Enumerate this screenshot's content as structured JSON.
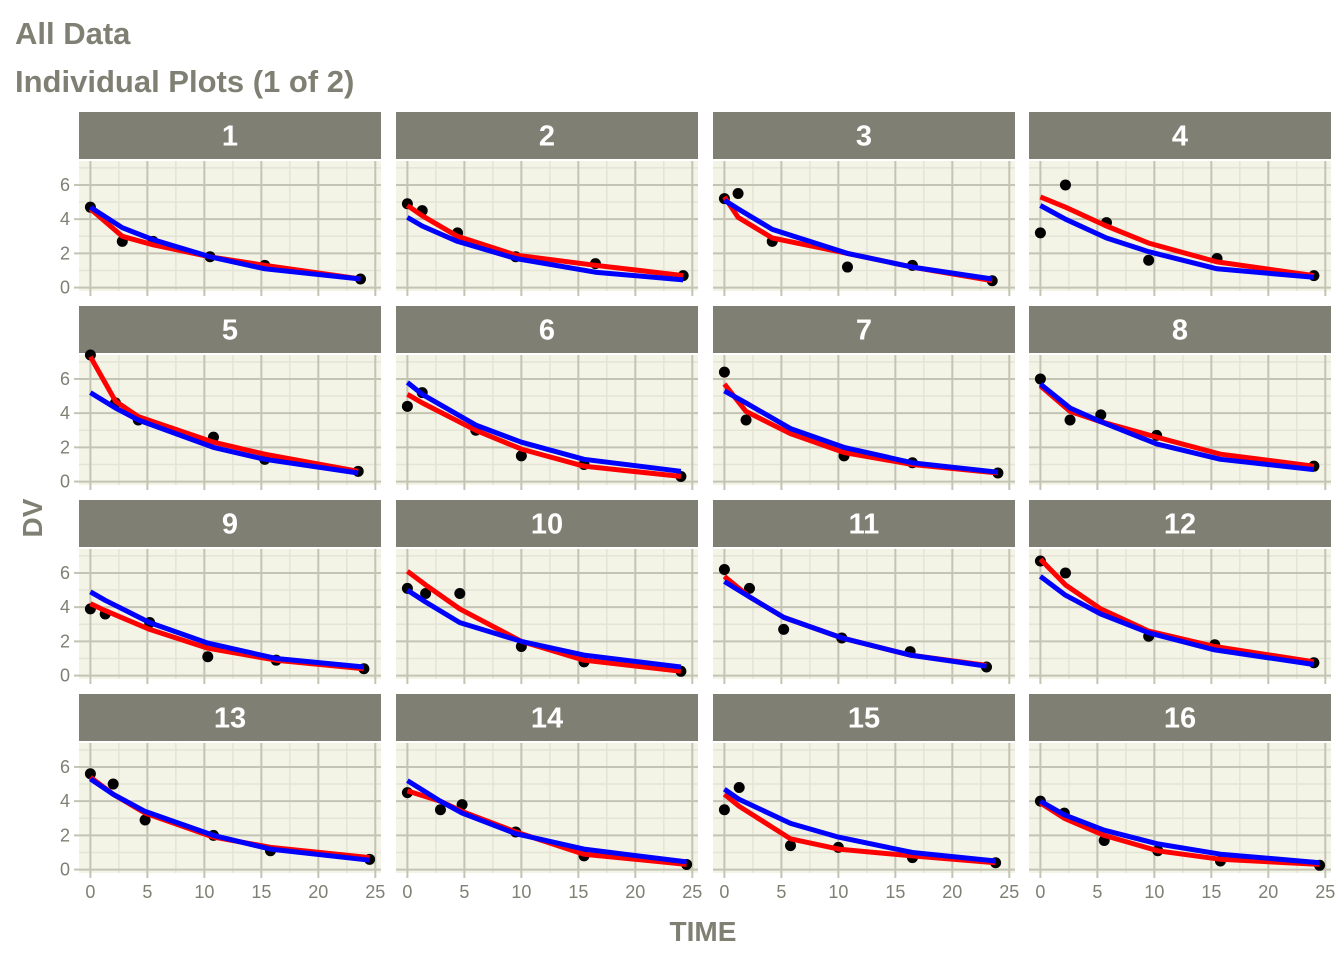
{
  "colors": {
    "text": "#7f7f73",
    "strip": "#7f7f73",
    "strip_text": "#ffffff",
    "panel_bg": "#f3f3e6",
    "grid_major": "#c4c4b4",
    "grid_minor": "#e4e4d6",
    "observed": "#000000",
    "ipred": "#ff0000",
    "pred": "#0000ff"
  },
  "header": {
    "title": "All Data",
    "subtitle": "Individual Plots (1 of 2)"
  },
  "chart_data": {
    "type": "line",
    "facet_layout": "4x4",
    "xlabel": "TIME",
    "ylabel": "DV",
    "xlim": [
      -1,
      25.5
    ],
    "ylim": [
      -0.2,
      7.4
    ],
    "x_ticks": [
      0,
      5,
      10,
      15,
      20,
      25
    ],
    "y_ticks": [
      0,
      2,
      4,
      6
    ],
    "grid": true,
    "legend": "none",
    "series_legend": [
      {
        "color": "#000000",
        "style": "points"
      },
      {
        "color": "#ff0000",
        "style": "line"
      },
      {
        "color": "#0000ff",
        "style": "line"
      }
    ],
    "panels": [
      {
        "label": "1",
        "obs_x": [
          0,
          2.8,
          5.5,
          10.5,
          15.3,
          23.7
        ],
        "obs_y": [
          4.7,
          2.7,
          2.7,
          1.8,
          1.3,
          0.5
        ],
        "red_x": [
          0,
          2.8,
          5.5,
          10.5,
          15.3,
          23.7
        ],
        "red_y": [
          4.6,
          3.0,
          2.5,
          1.8,
          1.3,
          0.5
        ],
        "blue_x": [
          0,
          2.8,
          5.5,
          10.5,
          15.3,
          23.7
        ],
        "blue_y": [
          4.7,
          3.5,
          2.8,
          1.8,
          1.1,
          0.5
        ]
      },
      {
        "label": "2",
        "obs_x": [
          0,
          1.3,
          4.4,
          9.5,
          16.5,
          24.2
        ],
        "obs_y": [
          4.9,
          4.5,
          3.2,
          1.8,
          1.4,
          0.7
        ],
        "red_x": [
          0,
          1.3,
          4.4,
          9.5,
          16.5,
          24.2
        ],
        "red_y": [
          4.8,
          4.2,
          3.0,
          1.9,
          1.3,
          0.7
        ],
        "blue_x": [
          0,
          1.3,
          4.4,
          9.5,
          16.5,
          24.2
        ],
        "blue_y": [
          4.1,
          3.6,
          2.7,
          1.7,
          0.9,
          0.45
        ]
      },
      {
        "label": "3",
        "obs_x": [
          0,
          1.2,
          4.2,
          10.8,
          16.5,
          23.5
        ],
        "obs_y": [
          5.2,
          5.5,
          2.7,
          1.2,
          1.3,
          0.4
        ],
        "red_x": [
          0,
          1.2,
          4.2,
          10.8,
          16.5,
          23.5
        ],
        "red_y": [
          5.3,
          4.1,
          2.9,
          2.0,
          1.2,
          0.4
        ],
        "blue_x": [
          0,
          1.2,
          4.2,
          10.8,
          16.5,
          23.5
        ],
        "blue_y": [
          5.1,
          4.6,
          3.4,
          2.0,
          1.2,
          0.5
        ]
      },
      {
        "label": "4",
        "obs_x": [
          0,
          2.2,
          5.8,
          9.5,
          15.5,
          24
        ],
        "obs_y": [
          3.2,
          6.0,
          3.8,
          1.6,
          1.7,
          0.7
        ],
        "red_x": [
          0,
          2.2,
          5.8,
          9.5,
          15.5,
          24
        ],
        "red_y": [
          5.3,
          4.7,
          3.6,
          2.6,
          1.5,
          0.7
        ],
        "blue_x": [
          0,
          2.2,
          5.8,
          9.5,
          15.5,
          24
        ],
        "blue_y": [
          4.8,
          4.0,
          2.9,
          2.1,
          1.1,
          0.6
        ]
      },
      {
        "label": "5",
        "obs_x": [
          0,
          2.2,
          4.2,
          10.8,
          15.3,
          23.5
        ],
        "obs_y": [
          7.4,
          4.6,
          3.6,
          2.6,
          1.3,
          0.6
        ],
        "red_x": [
          0,
          2.2,
          4.2,
          10.8,
          15.3,
          23.5
        ],
        "red_y": [
          7.3,
          4.7,
          3.8,
          2.3,
          1.6,
          0.6
        ],
        "blue_x": [
          0,
          2.2,
          4.2,
          10.8,
          15.3,
          23.5
        ],
        "blue_y": [
          5.2,
          4.3,
          3.6,
          2.0,
          1.3,
          0.5
        ]
      },
      {
        "label": "6",
        "obs_x": [
          0,
          1.3,
          6,
          10,
          15.5,
          24
        ],
        "obs_y": [
          4.4,
          5.2,
          3.0,
          1.5,
          1.0,
          0.3
        ],
        "red_x": [
          0,
          1.3,
          6,
          10,
          15.5,
          24
        ],
        "red_y": [
          5.1,
          4.6,
          3.0,
          1.9,
          0.9,
          0.3
        ],
        "blue_x": [
          0,
          1.3,
          6,
          10,
          15.5,
          24
        ],
        "blue_y": [
          5.8,
          5.1,
          3.3,
          2.3,
          1.3,
          0.6
        ]
      },
      {
        "label": "7",
        "obs_x": [
          0,
          1.9,
          10.5,
          16.5,
          24
        ],
        "obs_y": [
          6.4,
          3.6,
          1.5,
          1.1,
          0.5
        ],
        "red_x": [
          0,
          1.9,
          5.8,
          10.5,
          16.5,
          24
        ],
        "red_y": [
          5.7,
          4.1,
          2.8,
          1.7,
          1.0,
          0.5
        ],
        "blue_x": [
          0,
          1.9,
          5.8,
          10.5,
          16.5,
          24
        ],
        "blue_y": [
          5.3,
          4.6,
          3.1,
          2.0,
          1.1,
          0.55
        ]
      },
      {
        "label": "8",
        "obs_x": [
          0,
          2.6,
          5.3,
          10.2,
          24
        ],
        "obs_y": [
          6.0,
          3.6,
          3.9,
          2.7,
          0.9
        ],
        "red_x": [
          0,
          2.6,
          5.3,
          10.2,
          15.8,
          24
        ],
        "red_y": [
          5.6,
          4.1,
          3.5,
          2.6,
          1.6,
          0.9
        ],
        "blue_x": [
          0,
          2.6,
          5.3,
          10.2,
          15.8,
          24
        ],
        "blue_y": [
          5.7,
          4.3,
          3.5,
          2.2,
          1.3,
          0.7
        ]
      },
      {
        "label": "9",
        "obs_x": [
          0,
          1.3,
          5.2,
          10.3,
          16.3,
          24
        ],
        "obs_y": [
          3.9,
          3.6,
          3.1,
          1.1,
          0.9,
          0.4
        ],
        "red_x": [
          0,
          1.3,
          5.2,
          10.3,
          16.3,
          24
        ],
        "red_y": [
          4.2,
          3.8,
          2.7,
          1.6,
          0.9,
          0.4
        ],
        "blue_x": [
          0,
          1.3,
          5.2,
          10.3,
          16.3,
          24
        ],
        "blue_y": [
          4.9,
          4.4,
          3.1,
          1.9,
          1.0,
          0.5
        ]
      },
      {
        "label": "10",
        "obs_x": [
          0,
          1.6,
          4.6,
          10,
          15.5,
          24
        ],
        "obs_y": [
          5.1,
          4.8,
          4.8,
          1.7,
          0.8,
          0.25
        ],
        "red_x": [
          0,
          1.6,
          4.6,
          10,
          15.5,
          24
        ],
        "red_y": [
          6.1,
          5.3,
          3.9,
          2.0,
          0.9,
          0.25
        ],
        "blue_x": [
          0,
          1.6,
          4.6,
          10,
          15.5,
          24
        ],
        "blue_y": [
          5.0,
          4.3,
          3.1,
          2.0,
          1.2,
          0.5
        ]
      },
      {
        "label": "11",
        "obs_x": [
          0,
          2.2,
          5.2,
          10.3,
          16.3,
          23
        ],
        "obs_y": [
          6.2,
          5.1,
          2.7,
          2.2,
          1.4,
          0.5
        ],
        "red_x": [
          0,
          2.2,
          5.2,
          10.3,
          16.3,
          23
        ],
        "red_y": [
          5.8,
          4.6,
          3.4,
          2.2,
          1.2,
          0.6
        ],
        "blue_x": [
          0,
          2.2,
          5.2,
          10.3,
          16.3,
          23
        ],
        "blue_y": [
          5.5,
          4.6,
          3.4,
          2.2,
          1.2,
          0.55
        ]
      },
      {
        "label": "12",
        "obs_x": [
          0,
          2.2,
          9.5,
          15.3,
          24
        ],
        "obs_y": [
          6.7,
          6.0,
          2.3,
          1.8,
          0.75
        ],
        "red_x": [
          0,
          2.2,
          5.3,
          9.5,
          15.3,
          24
        ],
        "red_y": [
          6.8,
          5.3,
          3.9,
          2.6,
          1.7,
          0.8
        ],
        "blue_x": [
          0,
          2.2,
          5.3,
          9.5,
          15.3,
          24
        ],
        "blue_y": [
          5.8,
          4.7,
          3.6,
          2.5,
          1.5,
          0.65
        ]
      },
      {
        "label": "13",
        "obs_x": [
          0,
          2,
          4.8,
          10.8,
          15.8,
          24.5
        ],
        "obs_y": [
          5.6,
          5.0,
          2.9,
          2.0,
          1.1,
          0.6
        ],
        "red_x": [
          0,
          2,
          4.8,
          10.8,
          15.8,
          24.5
        ],
        "red_y": [
          5.4,
          4.4,
          3.3,
          1.9,
          1.3,
          0.7
        ],
        "blue_x": [
          0,
          2,
          4.8,
          10.8,
          15.8,
          24.5
        ],
        "blue_y": [
          5.3,
          4.4,
          3.4,
          2.0,
          1.2,
          0.55
        ]
      },
      {
        "label": "14",
        "obs_x": [
          0,
          2.9,
          4.8,
          9.5,
          15.5,
          24.5
        ],
        "obs_y": [
          4.5,
          3.5,
          3.8,
          2.2,
          0.8,
          0.3
        ],
        "red_x": [
          0,
          2.9,
          4.8,
          9.5,
          15.5,
          24.5
        ],
        "red_y": [
          4.6,
          4.0,
          3.4,
          2.2,
          0.9,
          0.3
        ],
        "blue_x": [
          0,
          2.9,
          4.8,
          9.5,
          15.5,
          24.5
        ],
        "blue_y": [
          5.2,
          4.0,
          3.3,
          2.1,
          1.2,
          0.45
        ]
      },
      {
        "label": "15",
        "obs_x": [
          0,
          1.3,
          5.8,
          10,
          16.5,
          23.8
        ],
        "obs_y": [
          3.5,
          4.8,
          1.4,
          1.3,
          0.7,
          0.4
        ],
        "red_x": [
          0,
          1.3,
          5.8,
          10,
          16.5,
          23.8
        ],
        "red_y": [
          4.4,
          3.7,
          1.8,
          1.2,
          0.8,
          0.4
        ],
        "blue_x": [
          0,
          1.3,
          5.8,
          10,
          16.5,
          23.8
        ],
        "blue_y": [
          4.7,
          4.1,
          2.7,
          1.9,
          1.0,
          0.5
        ]
      },
      {
        "label": "16",
        "obs_x": [
          0,
          2.1,
          5.6,
          10.3,
          15.8,
          24.5
        ],
        "obs_y": [
          4.0,
          3.3,
          1.7,
          1.1,
          0.5,
          0.25
        ],
        "red_x": [
          0,
          2.1,
          5.6,
          10.3,
          15.8,
          24.5
        ],
        "red_y": [
          3.9,
          3.0,
          2.0,
          1.1,
          0.6,
          0.3
        ],
        "blue_x": [
          0,
          2.1,
          5.6,
          10.3,
          15.8,
          24.5
        ],
        "blue_y": [
          4.0,
          3.2,
          2.3,
          1.5,
          0.9,
          0.4
        ]
      }
    ]
  }
}
